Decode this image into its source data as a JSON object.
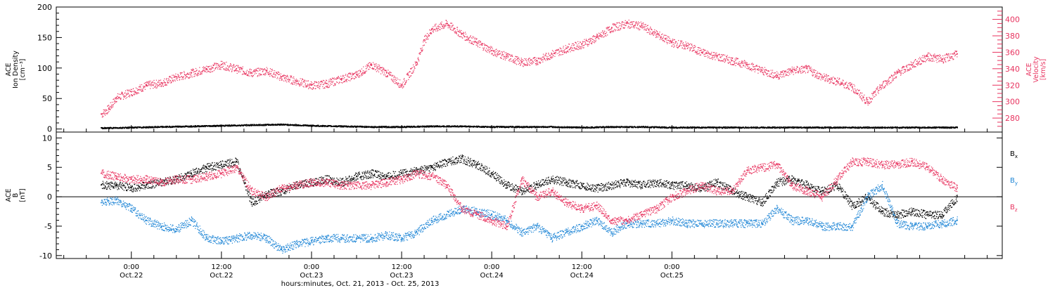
{
  "chart_data": [
    {
      "type": "scatter",
      "panel": "top",
      "ylabel_left_lines": [
        "ACE",
        "Ion Density",
        "[cm⁻³]"
      ],
      "ylabel_right_lines": [
        "ACE",
        "Velocity",
        "[km/s]"
      ],
      "ylim_left": [
        -5,
        200
      ],
      "yticks_left": [
        "0",
        "50",
        "100",
        "150",
        "200"
      ],
      "ytick_values_left": [
        0,
        50,
        100,
        150,
        200
      ],
      "ylim_right": [
        263,
        415
      ],
      "yticks_right": [
        "280",
        "300",
        "320",
        "340",
        "360",
        "380",
        "400"
      ],
      "ytick_values_right": [
        280,
        300,
        320,
        340,
        360,
        380,
        400
      ],
      "series": [
        {
          "color": "#e8335f",
          "axis": "right",
          "x": [
            -4,
            -3,
            -2,
            0,
            2,
            4,
            6,
            8,
            10,
            12,
            14,
            16,
            18,
            20,
            22,
            24,
            26,
            28,
            30,
            32,
            34,
            36,
            38,
            39,
            40,
            42,
            44,
            46,
            48,
            50,
            52,
            54,
            56,
            58,
            60,
            62,
            64,
            66,
            68,
            70,
            72,
            74,
            76,
            78,
            80,
            82,
            84,
            86,
            88,
            90,
            92,
            94,
            96,
            98,
            100,
            102,
            104,
            106,
            108,
            110
          ],
          "values": [
            285,
            292,
            305,
            312,
            320,
            323,
            330,
            335,
            340,
            345,
            340,
            335,
            338,
            330,
            325,
            320,
            322,
            328,
            333,
            345,
            335,
            320,
            348,
            375,
            388,
            395,
            382,
            372,
            362,
            355,
            348,
            350,
            358,
            365,
            370,
            378,
            390,
            395,
            392,
            382,
            372,
            368,
            360,
            355,
            350,
            345,
            338,
            332,
            338,
            340,
            330,
            325,
            318,
            300,
            320,
            335,
            345,
            355,
            352,
            358
          ]
        },
        {
          "color": "#000000",
          "axis": "left",
          "x": [
            -4,
            0,
            4,
            8,
            12,
            16,
            20,
            24,
            28,
            32,
            36,
            40,
            44,
            48,
            52,
            56,
            60,
            64,
            68,
            72,
            76,
            80,
            84,
            88,
            92,
            96,
            100,
            104,
            108,
            110
          ],
          "values": [
            2,
            3,
            4,
            5,
            6,
            7,
            8,
            6,
            5,
            4,
            4,
            5,
            5,
            4,
            4,
            4,
            3,
            4,
            4,
            3,
            3,
            3,
            3,
            3,
            3,
            3,
            3,
            3,
            3,
            3
          ]
        }
      ]
    },
    {
      "type": "scatter",
      "panel": "bottom",
      "ylabel_lines": [
        "ACE",
        "B",
        "[nT]"
      ],
      "ylim": [
        -10.5,
        11
      ],
      "yticks": [
        "-10",
        "-5",
        "0",
        "5",
        "10"
      ],
      "ytick_values": [
        -10,
        -5,
        0,
        5,
        10
      ],
      "xlabel": "hours:minutes, Oct. 21, 2013 - Oct. 25, 2013",
      "xlim": [
        -10,
        116
      ],
      "xticks_top": [
        "0:00",
        "12:00",
        "0:00",
        "12:00",
        "0:00",
        "12:00",
        "0:00"
      ],
      "xticks_bottom": [
        "Oct.22",
        "Oct.22",
        "Oct.23",
        "Oct.23",
        "Oct.24",
        "Oct.24",
        "Oct.25"
      ],
      "xtick_values": [
        0,
        12,
        24,
        36,
        48,
        60,
        72
      ],
      "legend": [
        {
          "label": "B",
          "sub": "x",
          "color": "#000000"
        },
        {
          "label": "B",
          "sub": "y",
          "color": "#1f86d6"
        },
        {
          "label": "B",
          "sub": "z",
          "color": "#e8335f"
        }
      ],
      "series": [
        {
          "name": "Bx",
          "color": "#000000",
          "x": [
            -4,
            -2,
            0,
            2,
            4,
            6,
            8,
            10,
            12,
            14,
            16,
            18,
            20,
            22,
            24,
            26,
            28,
            30,
            32,
            34,
            36,
            38,
            40,
            42,
            44,
            46,
            48,
            50,
            52,
            54,
            56,
            58,
            60,
            62,
            64,
            66,
            68,
            70,
            72,
            74,
            76,
            78,
            80,
            82,
            84,
            86,
            88,
            90,
            92,
            94,
            96,
            98,
            100,
            102,
            104,
            106,
            108,
            110
          ],
          "values": [
            2,
            2,
            1.5,
            2,
            2.5,
            3,
            4,
            5,
            5.5,
            6,
            -1,
            0.5,
            1,
            2,
            2.5,
            3,
            2.5,
            3.5,
            4,
            3.5,
            4,
            4.5,
            5,
            6,
            6.5,
            5.5,
            4,
            2,
            1,
            2,
            3,
            2.5,
            2,
            1.5,
            2,
            2.5,
            2,
            2.5,
            2,
            2,
            1.5,
            2.5,
            1,
            0,
            -1,
            2.5,
            3,
            2,
            1,
            2,
            -1.5,
            0,
            -2.5,
            -3,
            -2.5,
            -3,
            -3,
            0
          ]
        },
        {
          "name": "By",
          "color": "#1f86d6",
          "x": [
            -4,
            -2,
            0,
            2,
            4,
            6,
            8,
            10,
            12,
            14,
            16,
            18,
            20,
            22,
            24,
            26,
            28,
            30,
            32,
            34,
            36,
            38,
            40,
            42,
            44,
            46,
            48,
            50,
            52,
            54,
            56,
            58,
            60,
            62,
            64,
            66,
            68,
            70,
            72,
            74,
            76,
            78,
            80,
            82,
            84,
            86,
            88,
            90,
            92,
            94,
            96,
            98,
            100,
            102,
            104,
            106,
            108,
            110
          ],
          "values": [
            -1,
            -0.5,
            -2,
            -4,
            -5,
            -5.5,
            -4,
            -7,
            -7.5,
            -7,
            -6.5,
            -7,
            -9,
            -8,
            -7.5,
            -7,
            -7,
            -7,
            -7,
            -6.5,
            -7,
            -6,
            -4,
            -3,
            -2,
            -2.5,
            -3,
            -4,
            -6,
            -5,
            -7,
            -6,
            -5,
            -4,
            -6,
            -4.5,
            -4.5,
            -4.5,
            -4,
            -4.5,
            -4.5,
            -4.5,
            -4.5,
            -4.5,
            -4.5,
            -2,
            -4,
            -4,
            -5,
            -5,
            -5,
            0,
            2,
            -4.5,
            -5,
            -5,
            -4.5,
            -4
          ]
        },
        {
          "name": "Bz",
          "color": "#e8335f",
          "x": [
            -4,
            -2,
            0,
            2,
            4,
            6,
            8,
            10,
            12,
            14,
            16,
            18,
            20,
            22,
            24,
            26,
            28,
            30,
            32,
            34,
            36,
            38,
            40,
            42,
            44,
            46,
            48,
            50,
            52,
            54,
            56,
            58,
            60,
            62,
            64,
            66,
            68,
            70,
            72,
            74,
            76,
            78,
            80,
            82,
            84,
            86,
            88,
            90,
            92,
            94,
            96,
            98,
            100,
            102,
            104,
            106,
            108,
            110
          ],
          "values": [
            4,
            3.5,
            3,
            3,
            2.5,
            3,
            3,
            3.5,
            4,
            5,
            1,
            0,
            1.5,
            2,
            2.5,
            2.5,
            2,
            2,
            2,
            2.5,
            3,
            4,
            3.5,
            2,
            -2,
            -3,
            -4,
            -5,
            3,
            0,
            1,
            -1,
            -2,
            -1.5,
            -4,
            -4,
            -3,
            -2,
            0,
            1,
            2,
            1,
            1,
            4.5,
            5,
            5.5,
            2,
            1,
            0,
            3,
            6,
            6,
            5.5,
            5.5,
            6,
            5,
            3,
            1.5
          ]
        }
      ]
    }
  ]
}
